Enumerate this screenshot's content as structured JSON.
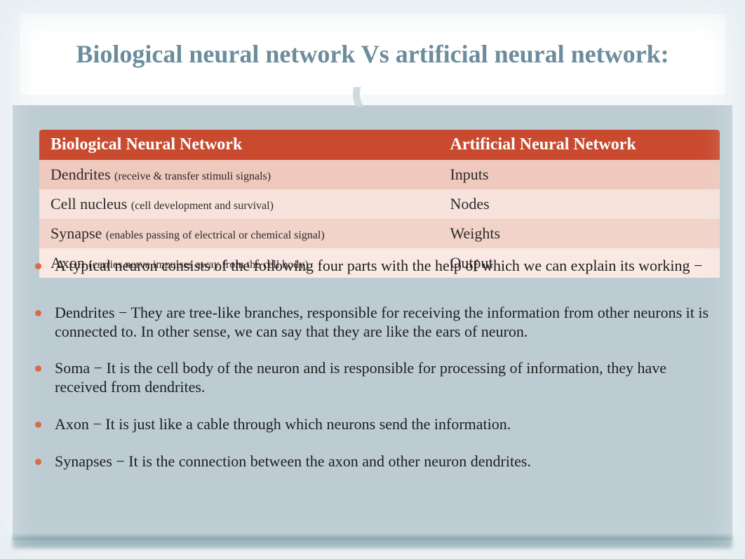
{
  "title": "Biological neural network Vs artificial neural network:",
  "table": {
    "header_bg": "#c94a2f",
    "row_bg": [
      "#f0c9be",
      "#f7e3dc",
      "#f2d3c9",
      "#fae9e3"
    ],
    "columns": [
      "Biological Neural Network",
      "Artificial Neural Network"
    ],
    "rows": [
      {
        "left_term": "Dendrites",
        "left_sub": "(receive & transfer stimuli signals)",
        "right": "Inputs"
      },
      {
        "left_term": "Cell nucleus",
        "left_sub": "(cell development and survival)",
        "right": "Nodes"
      },
      {
        "left_term": "Synapse",
        "left_sub": "(enables passing of electrical or chemical signal)",
        "right": "Weights"
      },
      {
        "left_term": "Axon",
        "left_sub": "(carries nerve impulses away from the cell body)",
        "right": "Output"
      }
    ]
  },
  "bullets": [
    "A typical neuron consists of the following four parts with the help of which we can explain its working −",
    "Dendrites − They are tree-like branches, responsible for receiving the information from other neurons it is connected to. In other sense, we can say that they are like the ears of neuron.",
    "Soma − It is the cell body of the neuron and is responsible for processing of information, they have received from dendrites.",
    "Axon − It is just like a cable through which neurons send the information.",
    "Synapses − It is the connection between the axon and other neuron dendrites."
  ],
  "colors": {
    "title_color": "#6b8d9c",
    "panel_bg": "#bdccd3",
    "bullet_color": "#d86a46",
    "bottom_bar": "#5d8690"
  }
}
